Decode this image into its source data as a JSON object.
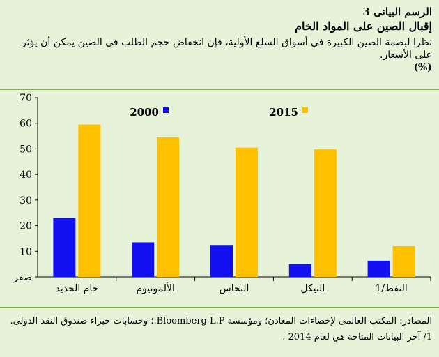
{
  "header": {
    "figure_number": "الرسم البيانى 3",
    "title": "إقبال الصين على المواد الخام",
    "subtitle": "نظرا لبصمة الصين الكبيرة فى أسواق السلع الأولية، فإن انخفاض حجم الطلب فى الصين يمكن أن يؤثر على الأسعار.",
    "unit": "(%)"
  },
  "chart_data": {
    "type": "bar",
    "categories": [
      "خام الحديد",
      "الألمونيوم",
      "النحاس",
      "النيكل",
      "النفط/1"
    ],
    "series": [
      {
        "name": "2000",
        "color": "#1010f0",
        "values": [
          23,
          13.5,
          12.2,
          5,
          6.3
        ]
      },
      {
        "name": "2015",
        "color": "#ffc000",
        "values": [
          59.5,
          54.5,
          50.5,
          49.8,
          12
        ]
      }
    ],
    "yticks": [
      "صفر",
      "10",
      "20",
      "30",
      "40",
      "50",
      "60",
      "70"
    ],
    "ylim": [
      0,
      70
    ],
    "grid": false,
    "legend_position": "top"
  },
  "footer": {
    "sources": "المصادر: المكتب العالمى لإحصاءات المعادن؛ ومؤسسة Bloomberg L.P.؛ وحسابات خبراء صندوق النقد الدولى.",
    "note": "1/ آخر البيانات المتاحة هي لعام 2014 ."
  }
}
